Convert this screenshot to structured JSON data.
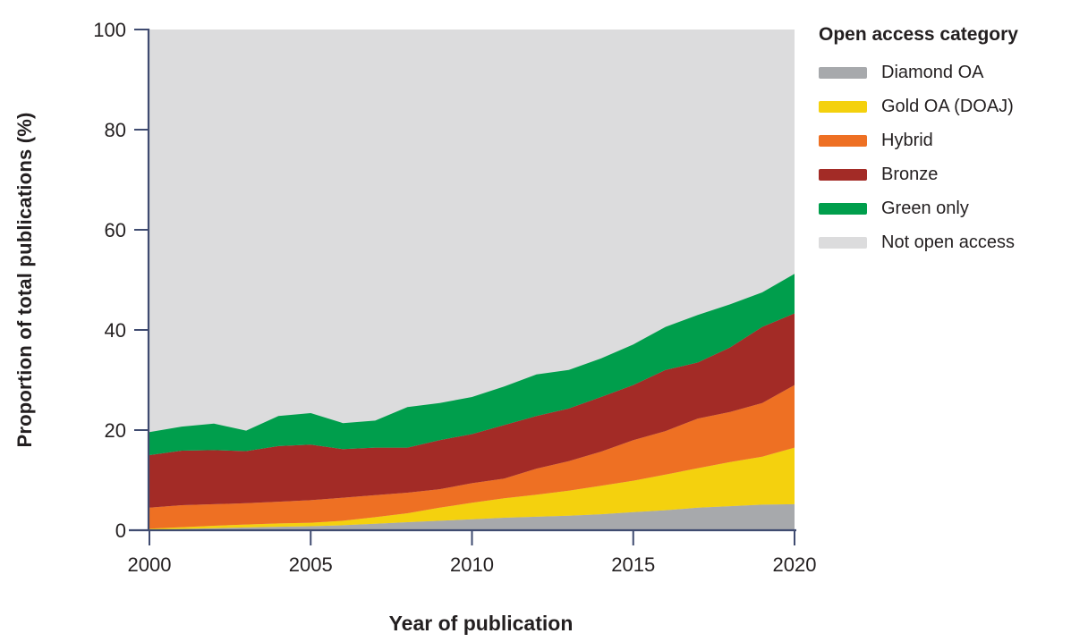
{
  "figure": {
    "y_axis_label": "Proportion of total publications (%)",
    "x_axis_label": "Year of publication"
  },
  "legend": {
    "title": "Open access category",
    "items": [
      {
        "label": "Diamond OA",
        "color": "#a7a9ac"
      },
      {
        "label": "Gold OA (DOAJ)",
        "color": "#f4d10e"
      },
      {
        "label": "Hybrid",
        "color": "#ee7023"
      },
      {
        "label": "Bronze",
        "color": "#a32b26"
      },
      {
        "label": "Green only",
        "color": "#009e4c"
      },
      {
        "label": "Not open access",
        "color": "#dcdcdd"
      }
    ]
  },
  "colors": {
    "axis": "#3f4b70",
    "text": "#231f20",
    "plot_background": "#dcdcdd"
  },
  "chart_data": {
    "type": "area",
    "stacked": true,
    "xlabel": "Year of publication",
    "ylabel": "Proportion of total publications (%)",
    "x": [
      2000,
      2001,
      2002,
      2003,
      2004,
      2005,
      2006,
      2007,
      2008,
      2009,
      2010,
      2011,
      2012,
      2013,
      2014,
      2015,
      2016,
      2017,
      2018,
      2019,
      2020
    ],
    "xticks": [
      2000,
      2005,
      2010,
      2015,
      2020
    ],
    "yticks": [
      0,
      20,
      40,
      60,
      80,
      100
    ],
    "ylim": [
      0,
      100
    ],
    "grid": false,
    "legend_position": "right",
    "series": [
      {
        "id": "diamond",
        "name": "Diamond OA",
        "color": "#a7a9ac",
        "values": [
          0.1,
          0.25,
          0.4,
          0.55,
          0.7,
          0.8,
          1.0,
          1.3,
          1.6,
          1.9,
          2.2,
          2.5,
          2.7,
          2.9,
          3.2,
          3.6,
          4.0,
          4.5,
          4.8,
          5.1,
          5.2
        ]
      },
      {
        "id": "gold",
        "name": "Gold OA (DOAJ)",
        "color": "#f4d10e",
        "values": [
          0.2,
          0.35,
          0.5,
          0.6,
          0.65,
          0.7,
          0.9,
          1.3,
          1.8,
          2.6,
          3.3,
          3.9,
          4.4,
          5.0,
          5.7,
          6.3,
          7.1,
          7.9,
          8.8,
          9.6,
          11.3
        ]
      },
      {
        "id": "hybrid",
        "name": "Hybrid",
        "color": "#ee7023",
        "values": [
          4.2,
          4.4,
          4.3,
          4.25,
          4.35,
          4.5,
          4.6,
          4.4,
          4.1,
          3.7,
          3.9,
          3.9,
          5.2,
          5.9,
          6.8,
          8.1,
          8.7,
          9.9,
          10.0,
          10.7,
          12.5
        ]
      },
      {
        "id": "bronze",
        "name": "Bronze",
        "color": "#a32b26",
        "values": [
          10.5,
          10.9,
          10.8,
          10.4,
          11.1,
          11.1,
          9.7,
          9.5,
          9.0,
          9.8,
          9.8,
          10.7,
          10.5,
          10.5,
          10.9,
          11.0,
          12.2,
          11.2,
          12.9,
          15.2,
          14.3
        ]
      },
      {
        "id": "green-only",
        "name": "Green only",
        "color": "#009e4c",
        "values": [
          4.6,
          4.8,
          5.3,
          4.1,
          6.0,
          6.3,
          5.2,
          5.4,
          8.1,
          7.4,
          7.4,
          7.7,
          8.3,
          7.7,
          7.7,
          8.1,
          8.6,
          9.5,
          8.6,
          6.9,
          7.9
        ]
      },
      {
        "id": "not-open-access",
        "name": "Not open access",
        "color": "#dcdcdd",
        "remainder_to_100": true
      }
    ]
  }
}
